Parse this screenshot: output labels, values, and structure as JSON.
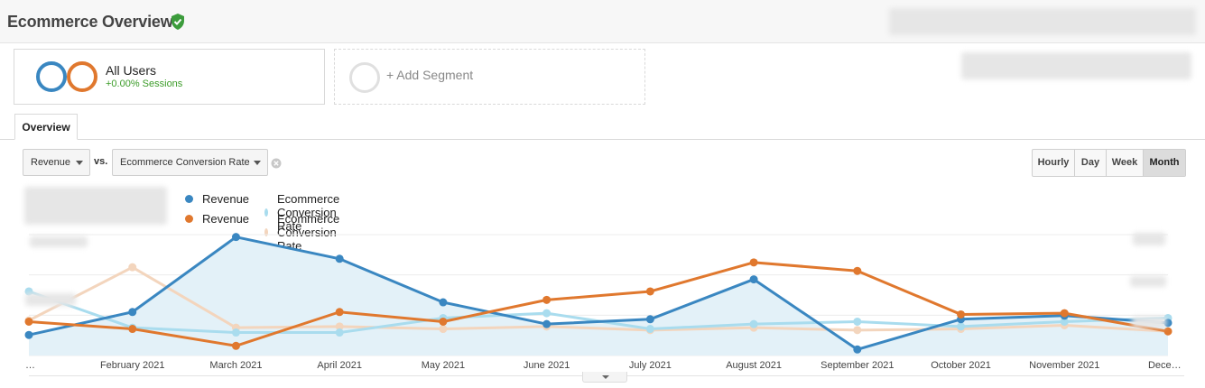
{
  "header": {
    "title": "Ecommerce Overview"
  },
  "segments": {
    "active": {
      "name": "All Users",
      "sublabel": "+0.00% Sessions"
    },
    "add_label": "+ Add Segment"
  },
  "tabs": {
    "overview": "Overview"
  },
  "controls": {
    "metric_primary": "Revenue",
    "vs_label": "vs.",
    "metric_secondary": "Ecommerce Conversion Rate",
    "periods": [
      "Hourly",
      "Day",
      "Week",
      "Month"
    ],
    "active_period": "Month"
  },
  "legend": [
    {
      "label": "Revenue",
      "color": "#3a87c1"
    },
    {
      "label": "Ecommerce Conversion Rate",
      "color": "#a9dcee"
    },
    {
      "label": "Revenue",
      "color": "#e0782e"
    },
    {
      "label": "Ecommerce Conversion Rate",
      "color": "#f3d5bd"
    }
  ],
  "chart_data": {
    "type": "line",
    "x": [
      "…",
      "February 2021",
      "March 2021",
      "April 2021",
      "May 2021",
      "June 2021",
      "July 2021",
      "August 2021",
      "September 2021",
      "October 2021",
      "November 2021",
      "Dece…"
    ],
    "ylim": [
      0,
      100
    ],
    "series": [
      {
        "name": "Revenue",
        "color": "#3a87c1",
        "area": true,
        "values": [
          17,
          36,
          98,
          80,
          44,
          26,
          30,
          63,
          5,
          30,
          33,
          27
        ]
      },
      {
        "name": "Ecommerce Conversion Rate",
        "color": "#a9dcee",
        "area": false,
        "values": [
          53,
          23,
          19,
          19,
          31,
          35,
          22,
          26,
          28,
          24,
          28,
          31
        ]
      },
      {
        "name": "Revenue",
        "color": "#e0782e",
        "area": false,
        "values": [
          28,
          22,
          8,
          36,
          28,
          46,
          53,
          77,
          70,
          34,
          35,
          20
        ]
      },
      {
        "name": "Ecommerce Conversion Rate",
        "color": "#f3d5bd",
        "area": false,
        "values": [
          29,
          73,
          23,
          24,
          22,
          24,
          21,
          23,
          21,
          22,
          25,
          20
        ]
      }
    ]
  }
}
